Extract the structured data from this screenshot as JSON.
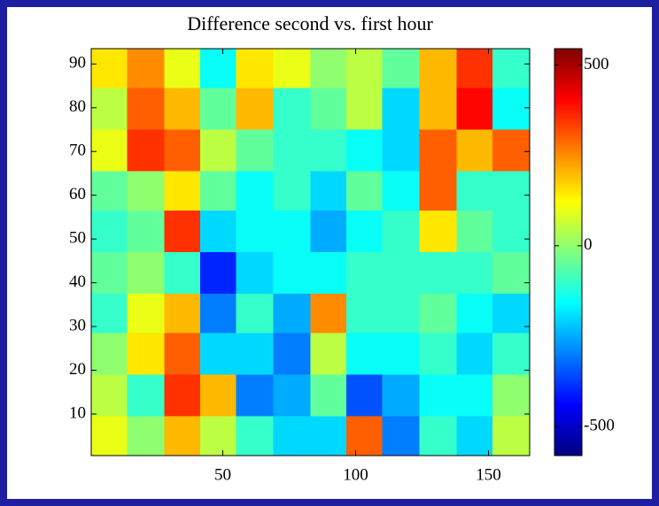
{
  "chart_data": {
    "type": "heatmap",
    "title": "Difference second vs. first hour",
    "x": [
      7,
      21,
      35,
      48,
      62,
      76,
      90,
      103,
      117,
      131,
      145,
      158
    ],
    "y": [
      89,
      80,
      70,
      61,
      52,
      42,
      33,
      24,
      14,
      5
    ],
    "z": [
      [
        150,
        250,
        100,
        -150,
        150,
        100,
        0,
        50,
        -50,
        200,
        350,
        -100
      ],
      [
        50,
        300,
        200,
        -50,
        200,
        -100,
        -50,
        50,
        -200,
        200,
        400,
        -150
      ],
      [
        100,
        350,
        300,
        50,
        -50,
        -100,
        -100,
        -150,
        -200,
        300,
        200,
        300
      ],
      [
        -50,
        0,
        150,
        -50,
        -150,
        -100,
        -200,
        -50,
        -150,
        300,
        -100,
        -100
      ],
      [
        -100,
        -50,
        350,
        -200,
        -150,
        -150,
        -250,
        -150,
        -100,
        150,
        -50,
        -100
      ],
      [
        -50,
        0,
        -100,
        -400,
        -200,
        -150,
        -150,
        -100,
        -100,
        -100,
        -100,
        -50
      ],
      [
        -100,
        100,
        200,
        -300,
        -100,
        -250,
        250,
        -100,
        -100,
        -50,
        -150,
        -200
      ],
      [
        0,
        150,
        300,
        -200,
        -200,
        -300,
        50,
        -150,
        -150,
        -100,
        -200,
        -100
      ],
      [
        50,
        -100,
        350,
        200,
        -300,
        -250,
        -50,
        -350,
        -250,
        -150,
        -150,
        0
      ],
      [
        100,
        0,
        200,
        50,
        -100,
        -200,
        -200,
        300,
        -300,
        -100,
        -200,
        50
      ]
    ],
    "xlim": [
      0.5,
      165.5
    ],
    "ylim": [
      0.5,
      93.5
    ],
    "xticks": [
      50,
      100,
      150
    ],
    "yticks": [
      10,
      20,
      30,
      40,
      50,
      60,
      70,
      80,
      90
    ],
    "clim": [
      -580,
      545
    ],
    "cticks": [
      500,
      0,
      -500
    ],
    "colormap": "jet"
  }
}
